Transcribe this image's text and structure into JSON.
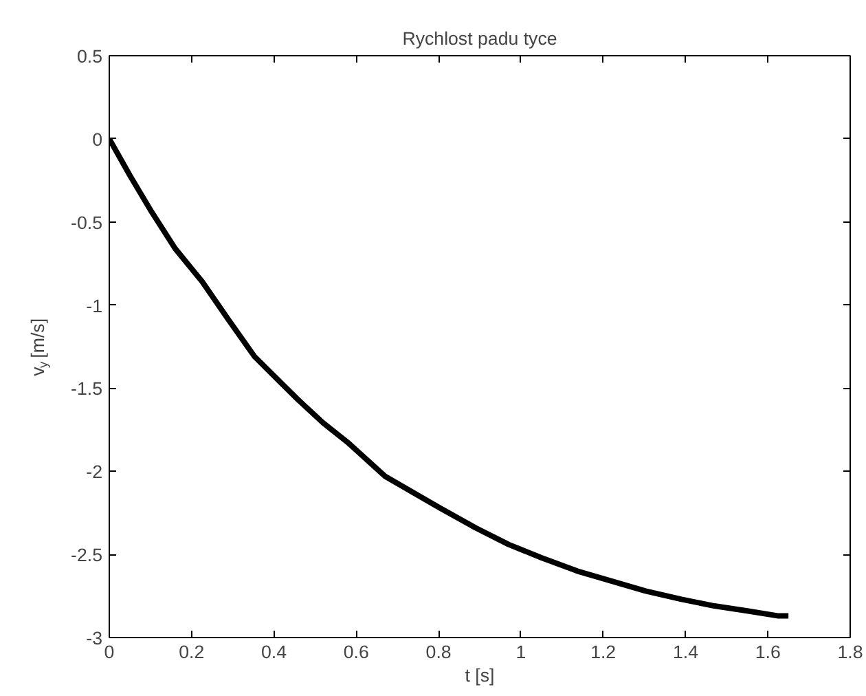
{
  "chart_data": {
    "type": "line",
    "title": "Rychlost padu tyce",
    "xlabel": "t [s]",
    "ylabel": "v$_{y}$ [m/s]",
    "xlim": [
      0,
      1.8
    ],
    "ylim": [
      -3,
      0.5
    ],
    "xticks": [
      0,
      0.2,
      0.4,
      0.6,
      0.8,
      1,
      1.2,
      1.4,
      1.6,
      1.8
    ],
    "yticks": [
      -3,
      -2.5,
      -2,
      -1.5,
      -1,
      -0.5,
      0,
      0.5
    ],
    "grid": false,
    "marker": "none",
    "line_style": "solid",
    "series": [
      {
        "color": "#000000",
        "x": [
          0,
          0.05,
          0.103,
          0.16,
          0.226,
          0.29,
          0.353,
          0.41,
          0.459,
          0.52,
          0.581,
          0.67,
          0.74,
          0.803,
          0.89,
          0.97,
          1.05,
          1.137,
          1.22,
          1.303,
          1.39,
          1.47,
          1.55,
          1.626,
          1.65
        ],
        "values": [
          0,
          -0.22,
          -0.44,
          -0.66,
          -0.86,
          -1.09,
          -1.31,
          -1.45,
          -1.57,
          -1.71,
          -1.83,
          -2.03,
          -2.13,
          -2.22,
          -2.34,
          -2.44,
          -2.52,
          -2.6,
          -2.66,
          -2.72,
          -2.77,
          -2.81,
          -2.84,
          -2.87,
          -2.87
        ]
      }
    ]
  }
}
